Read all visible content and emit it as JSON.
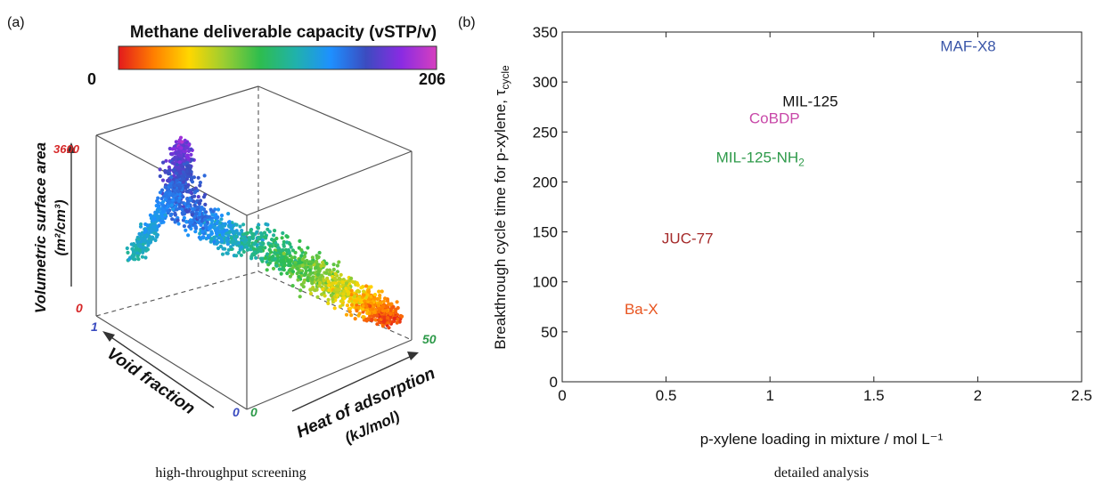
{
  "panel_a": {
    "label": "(a)",
    "colorbar": {
      "title": "Methane deliverable capacity (vSTP/v)",
      "min_label": "0",
      "max_label": "206",
      "stops": [
        "#e31a1c",
        "#ff7f00",
        "#ffd700",
        "#9acd32",
        "#2ebd4e",
        "#20b2aa",
        "#1e90ff",
        "#3b4cc0",
        "#8a2be2",
        "#d63fbf"
      ]
    },
    "axes": {
      "z_label_line1": "Volumetric surface area",
      "z_label_line2": "(m²/cm³)",
      "z_max": "3600",
      "z_min": "0",
      "y_label": "Void fraction",
      "y_max": "1",
      "y_min": "0",
      "x_label_line1": "Heat of adsorption",
      "x_label_line2": "(kJ/mol)",
      "x_min": "0",
      "x_max": "50"
    },
    "caption": "high-throughput screening"
  },
  "panel_b": {
    "label": "(b)",
    "caption": "detailed analysis",
    "chart_data": {
      "type": "scatter",
      "xlabel": "p-xylene loading in mixture / mol L⁻¹",
      "ylabel_main": "Breakthrough cycle time for p-xylene, τ",
      "ylabel_sub": "cycle",
      "xlim": [
        0,
        2.5
      ],
      "ylim": [
        0,
        350
      ],
      "xticks": [
        0,
        0.5,
        1,
        1.5,
        2,
        2.5
      ],
      "xtick_labels": [
        "0",
        "0.5",
        "1",
        "1.5",
        "2",
        "2.5"
      ],
      "yticks": [
        0,
        50,
        100,
        150,
        200,
        250,
        300,
        350
      ],
      "ytick_labels": [
        "0",
        "50",
        "100",
        "150",
        "200",
        "250",
        "300",
        "350"
      ],
      "points": [
        {
          "label": "MAF-X8",
          "x": 1.82,
          "y": 336,
          "color": "#3a56a8"
        },
        {
          "label": "MIL-125",
          "x": 1.06,
          "y": 281,
          "color": "#111111"
        },
        {
          "label": "CoBDP",
          "x": 0.9,
          "y": 264,
          "color": "#c848a8"
        },
        {
          "label": "MIL-125-NH",
          "sub": "2",
          "x": 0.74,
          "y": 225,
          "color": "#2e9a4a"
        },
        {
          "label": "JUC-77",
          "x": 0.48,
          "y": 144,
          "color": "#a52a2a"
        },
        {
          "label": "Ba-X",
          "x": 0.3,
          "y": 73,
          "color": "#e8541f"
        }
      ]
    }
  }
}
